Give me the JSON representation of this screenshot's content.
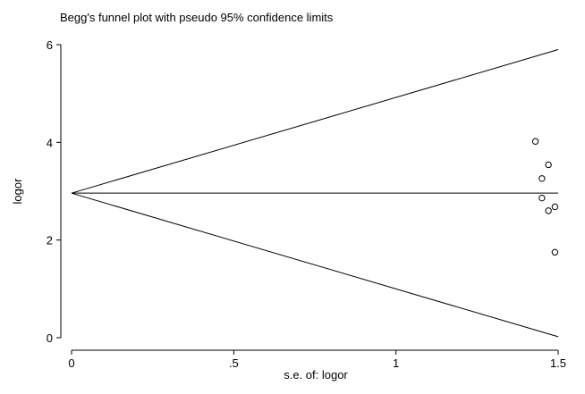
{
  "chart_data": {
    "type": "scatter",
    "title": "Begg's funnel plot with pseudo 95% confidence limits",
    "xlabel": "s.e. of: logor",
    "ylabel": "logor",
    "xlim": [
      0,
      1.5
    ],
    "ylim": [
      0,
      6
    ],
    "xticks": [
      0,
      0.5,
      1,
      1.5
    ],
    "xtick_labels": [
      "0",
      ".5",
      "1",
      "1.5"
    ],
    "yticks": [
      0,
      2,
      4,
      6
    ],
    "ytick_labels": [
      "0",
      "2",
      "4",
      "6"
    ],
    "pooled_estimate": 2.96,
    "ci_multiplier": 1.96,
    "points": [
      {
        "x": 1.43,
        "y": 4.02
      },
      {
        "x": 1.47,
        "y": 3.54
      },
      {
        "x": 1.45,
        "y": 3.26
      },
      {
        "x": 1.45,
        "y": 2.86
      },
      {
        "x": 1.49,
        "y": 2.68
      },
      {
        "x": 1.47,
        "y": 2.6
      },
      {
        "x": 1.49,
        "y": 1.75
      }
    ],
    "grid": false,
    "marker": "hollow-circle",
    "line_color": "#000000",
    "marker_color": "#000000"
  }
}
